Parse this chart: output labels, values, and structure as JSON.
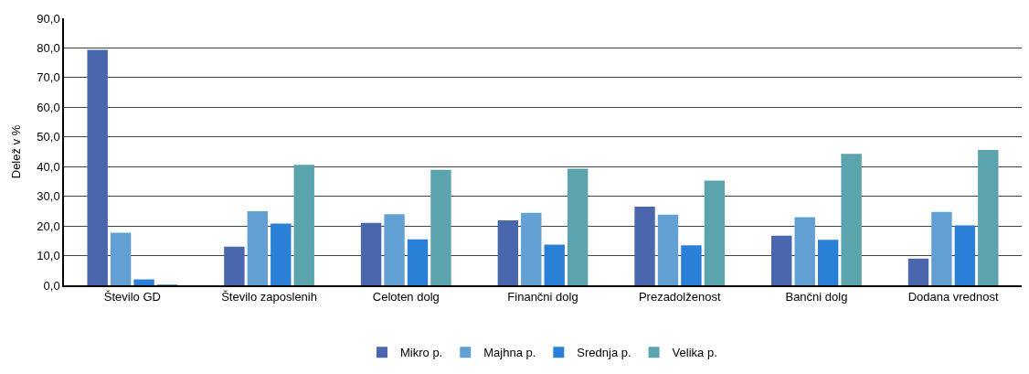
{
  "chart_data": {
    "type": "bar",
    "ylabel": "Delež v %",
    "categories": [
      "Število GD",
      "Število zaposlenih",
      "Celoten dolg",
      "Finančni dolg",
      "Prezadolženost",
      "Bančni dolg",
      "Dodana vrednost"
    ],
    "series": [
      {
        "name": "Mikro p.",
        "color": "#4a66ad",
        "values": [
          79.4,
          13.0,
          21.0,
          21.9,
          26.5,
          16.7,
          9.0
        ]
      },
      {
        "name": "Majhna p.",
        "color": "#629fd3",
        "values": [
          17.7,
          25.0,
          24.0,
          24.4,
          23.8,
          23.0,
          24.7
        ]
      },
      {
        "name": "Srednja p.",
        "color": "#2a7fd6",
        "values": [
          2.0,
          20.8,
          15.5,
          13.7,
          13.5,
          15.3,
          20.2
        ]
      },
      {
        "name": "Velika p.",
        "color": "#5ba3ad",
        "values": [
          0.2,
          40.6,
          38.9,
          39.3,
          35.3,
          44.3,
          45.6
        ]
      }
    ],
    "ylim": [
      0,
      90
    ],
    "yticks": [
      {
        "value": 0,
        "label": "0,0"
      },
      {
        "value": 10,
        "label": "10,0"
      },
      {
        "value": 20,
        "label": "20,0"
      },
      {
        "value": 30,
        "label": "30,0"
      },
      {
        "value": 40,
        "label": "40,0"
      },
      {
        "value": 50,
        "label": "50,0"
      },
      {
        "value": 60,
        "label": "60,0"
      },
      {
        "value": 70,
        "label": "70,0"
      },
      {
        "value": 80,
        "label": "80,0"
      },
      {
        "value": 90,
        "label": "90,0"
      }
    ],
    "grid": "y",
    "legend": "bottom"
  }
}
